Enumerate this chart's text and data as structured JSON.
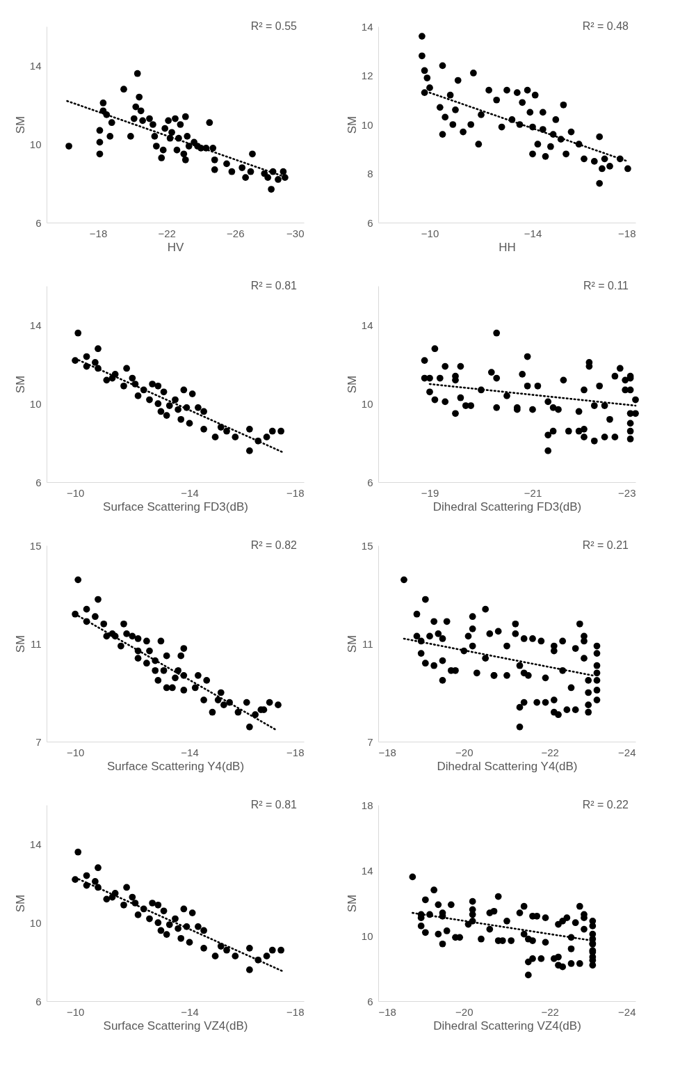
{
  "chart_data": [
    {
      "type": "scatter",
      "xlabel": "HV",
      "ylabel": "SM",
      "xlim": [
        -15,
        -30
      ],
      "xticks": [
        -18,
        -22,
        -26,
        -30
      ],
      "ylim": [
        6,
        16
      ],
      "yticks": [
        6,
        10,
        14
      ],
      "marker": "circle",
      "annotations": [
        "R² = 0.55"
      ],
      "series": [
        {
          "type": "scatter",
          "color": "#000000",
          "x": [
            -16.3,
            -18.1,
            -18.1,
            -18.1,
            -18.3,
            -18.3,
            -18.5,
            -18.7,
            -18.8,
            -19.5,
            -19.9,
            -20.1,
            -20.3,
            -20.4,
            -20.2,
            -20.5,
            -20.6,
            -21.0,
            -21.2,
            -21.3,
            -21.4,
            -21.7,
            -21.8,
            -21.9,
            -22.1,
            -22.2,
            -22.3,
            -22.5,
            -22.6,
            -22.7,
            -22.8,
            -23.0,
            -23.1,
            -23.1,
            -23.2,
            -23.3,
            -23.6,
            -23.8,
            -24.0,
            -24.3,
            -24.5,
            -24.7,
            -24.8,
            -24.8,
            -25.5,
            -25.8,
            -26.4,
            -26.6,
            -27.0,
            -26.9,
            -27.7,
            -27.9,
            -28.1,
            -28.2,
            -28.5,
            -28.8,
            -28.9
          ],
          "values": [
            9.9,
            10.1,
            9.5,
            10.7,
            12.1,
            11.7,
            11.5,
            10.4,
            11.1,
            12.8,
            10.4,
            11.3,
            13.6,
            12.4,
            11.9,
            11.7,
            11.2,
            11.3,
            11.0,
            10.4,
            9.9,
            9.3,
            9.7,
            10.8,
            11.2,
            10.3,
            10.6,
            11.3,
            9.7,
            10.3,
            11.0,
            9.5,
            11.4,
            9.2,
            10.4,
            9.9,
            10.1,
            9.9,
            9.8,
            9.8,
            11.1,
            9.8,
            9.2,
            8.7,
            9.0,
            8.6,
            8.8,
            8.3,
            9.5,
            8.6,
            8.5,
            8.3,
            7.7,
            8.6,
            8.2,
            8.6,
            8.3
          ]
        },
        {
          "type": "line",
          "line_style": "dotted",
          "color": "#000000",
          "marker": "none",
          "x": [
            -16.2,
            -29.0
          ],
          "values": [
            12.2,
            8.3
          ]
        }
      ]
    },
    {
      "type": "scatter",
      "xlabel": "HH",
      "ylabel": "SM",
      "xlim": [
        -8,
        -18
      ],
      "xticks": [
        -10,
        -14,
        -18
      ],
      "ylim": [
        6,
        14
      ],
      "yticks": [
        6,
        8,
        10,
        12,
        14
      ],
      "marker": "circle",
      "annotations": [
        "R² = 0.48"
      ],
      "series": [
        {
          "type": "scatter",
          "color": "#000000",
          "x": [
            -9.7,
            -9.7,
            -9.8,
            -9.8,
            -9.9,
            -10.0,
            -10.4,
            -10.5,
            -10.5,
            -10.6,
            -10.8,
            -10.9,
            -11.0,
            -11.1,
            -11.3,
            -11.6,
            -11.7,
            -11.9,
            -12.0,
            -12.3,
            -12.6,
            -12.8,
            -13.0,
            -13.2,
            -13.4,
            -13.5,
            -13.6,
            -13.8,
            -13.9,
            -14.0,
            -14.0,
            -14.1,
            -14.2,
            -14.4,
            -14.4,
            -14.5,
            -14.7,
            -14.8,
            -14.9,
            -15.1,
            -15.2,
            -15.3,
            -15.5,
            -15.8,
            -16.0,
            -16.4,
            -16.6,
            -16.6,
            -16.7,
            -16.8,
            -17.0,
            -17.4,
            -17.7
          ],
          "values": [
            13.6,
            12.8,
            12.2,
            11.3,
            11.9,
            11.5,
            10.7,
            12.4,
            9.6,
            10.3,
            11.2,
            10.0,
            10.6,
            11.8,
            9.7,
            10.0,
            12.1,
            9.2,
            10.4,
            11.4,
            11.0,
            9.9,
            11.4,
            10.2,
            11.3,
            10.0,
            10.9,
            11.4,
            10.5,
            9.9,
            8.8,
            11.2,
            9.2,
            9.8,
            10.5,
            8.7,
            9.1,
            9.6,
            10.2,
            9.4,
            10.8,
            8.8,
            9.7,
            9.2,
            8.6,
            8.5,
            9.5,
            7.6,
            8.2,
            8.6,
            8.3,
            8.6,
            8.2
          ]
        },
        {
          "type": "line",
          "line_style": "dotted",
          "color": "#000000",
          "marker": "none",
          "x": [
            -10.0,
            -17.7
          ],
          "values": [
            11.3,
            8.5
          ]
        }
      ]
    },
    {
      "type": "scatter",
      "xlabel": "Surface Scattering FD3(dB)",
      "ylabel": "SM",
      "xlim": [
        -9,
        -18
      ],
      "xticks": [
        -10,
        -14,
        -18
      ],
      "ylim": [
        6,
        16
      ],
      "yticks": [
        6,
        10,
        14
      ],
      "marker": "circle",
      "annotations": [
        "R² = 0.81"
      ],
      "series": [
        {
          "type": "scatter",
          "color": "#000000",
          "x": [
            -10.1,
            -10.0,
            -10.4,
            -10.4,
            -10.8,
            -10.7,
            -10.8,
            -11.1,
            -11.3,
            -11.4,
            -11.7,
            -11.8,
            -12.0,
            -12.1,
            -12.2,
            -12.4,
            -12.6,
            -12.7,
            -12.9,
            -12.9,
            -13.0,
            -13.1,
            -13.2,
            -13.3,
            -13.5,
            -13.6,
            -13.7,
            -13.8,
            -13.9,
            -14.0,
            -14.1,
            -14.3,
            -14.5,
            -14.5,
            -14.9,
            -15.1,
            -15.3,
            -15.6,
            -16.1,
            -16.1,
            -16.4,
            -16.7,
            -16.9,
            -17.2
          ],
          "values": [
            13.6,
            12.2,
            12.4,
            11.9,
            12.8,
            12.1,
            11.8,
            11.2,
            11.3,
            11.5,
            10.9,
            11.8,
            11.3,
            11.0,
            10.4,
            10.7,
            10.2,
            11.0,
            10.9,
            10.0,
            9.6,
            10.6,
            9.4,
            9.9,
            10.2,
            9.7,
            9.2,
            10.7,
            9.8,
            9.0,
            10.5,
            9.8,
            9.6,
            8.7,
            8.3,
            8.8,
            8.6,
            8.3,
            8.7,
            7.6,
            8.1,
            8.3,
            8.6,
            8.6
          ]
        },
        {
          "type": "line",
          "line_style": "dotted",
          "color": "#000000",
          "x": [
            -10.0,
            -17.3
          ],
          "values": [
            12.3,
            7.5
          ],
          "marker": "none"
        }
      ]
    },
    {
      "type": "scatter",
      "xlabel": "Dihedral Scattering FD3(dB)",
      "ylabel": "SM",
      "xlim": [
        -18,
        -23
      ],
      "xticks": [
        -19,
        -21,
        -23
      ],
      "ylim": [
        6,
        16
      ],
      "yticks": [
        6,
        10,
        14
      ],
      "marker": "circle",
      "annotations": [
        "R² = 0.11"
      ],
      "series": [
        {
          "type": "scatter",
          "color": "#000000",
          "x": [
            -18.9,
            -18.9,
            -19.0,
            -19.0,
            -19.1,
            -19.1,
            -19.2,
            -19.3,
            -19.3,
            -19.5,
            -19.5,
            -19.5,
            -19.6,
            -19.6,
            -19.7,
            -19.8,
            -20.0,
            -20.2,
            -20.3,
            -20.3,
            -20.3,
            -20.5,
            -20.7,
            -20.7,
            -20.8,
            -20.9,
            -20.9,
            -21.0,
            -21.1,
            -21.3,
            -21.3,
            -21.3,
            -21.4,
            -21.4,
            -21.5,
            -21.6,
            -21.7,
            -21.9,
            -21.9,
            -22.0,
            -22.0,
            -22.0,
            -22.1,
            -22.1,
            -22.2,
            -22.2,
            -22.3,
            -22.4,
            -22.4,
            -22.5,
            -22.6,
            -22.6,
            -22.7,
            -22.8,
            -22.8,
            -22.9,
            -22.9,
            -22.9,
            -22.9,
            -22.9,
            -22.9,
            -22.9,
            -23.0,
            -23.0
          ],
          "values": [
            12.2,
            11.3,
            11.3,
            10.6,
            10.2,
            12.8,
            11.3,
            10.1,
            11.9,
            11.4,
            11.2,
            9.5,
            10.3,
            11.9,
            9.9,
            9.9,
            10.7,
            11.6,
            13.6,
            11.3,
            9.8,
            10.4,
            9.8,
            9.7,
            11.5,
            12.4,
            10.9,
            9.7,
            10.9,
            10.1,
            8.4,
            7.6,
            9.8,
            8.6,
            9.7,
            11.2,
            8.6,
            9.6,
            8.6,
            8.3,
            10.7,
            8.7,
            11.9,
            12.1,
            8.1,
            9.9,
            10.9,
            9.9,
            8.3,
            9.2,
            11.4,
            8.3,
            11.8,
            11.2,
            10.7,
            11.3,
            10.7,
            9.0,
            8.6,
            9.5,
            11.4,
            8.2,
            10.2,
            9.5
          ]
        },
        {
          "type": "line",
          "line_style": "dotted",
          "color": "#000000",
          "marker": "none",
          "x": [
            -19.0,
            -23.0
          ],
          "values": [
            11.0,
            9.9
          ]
        }
      ]
    },
    {
      "type": "scatter",
      "xlabel": "Surface Scattering Y4(dB)",
      "ylabel": "SM",
      "xlim": [
        -9,
        -18
      ],
      "xticks": [
        -10,
        -14,
        -18
      ],
      "ylim": [
        7,
        15
      ],
      "yticks": [
        7,
        11,
        15
      ],
      "marker": "circle",
      "annotations": [
        "R² = 0.82"
      ],
      "series": [
        {
          "type": "scatter",
          "color": "#000000",
          "x": [
            -10.1,
            -10.0,
            -10.4,
            -10.4,
            -10.8,
            -10.7,
            -11.0,
            -11.1,
            -11.3,
            -11.4,
            -11.6,
            -11.7,
            -11.8,
            -12.0,
            -12.2,
            -12.2,
            -12.2,
            -12.5,
            -12.5,
            -12.6,
            -12.8,
            -12.8,
            -12.9,
            -13.0,
            -13.1,
            -13.2,
            -13.2,
            -13.4,
            -13.5,
            -13.6,
            -13.7,
            -13.8,
            -13.8,
            -13.8,
            -14.2,
            -14.3,
            -14.5,
            -14.6,
            -14.8,
            -15.0,
            -15.1,
            -15.2,
            -15.4,
            -15.7,
            -16.0,
            -16.1,
            -16.3,
            -16.5,
            -16.6,
            -16.8,
            -17.1
          ],
          "values": [
            13.6,
            12.2,
            12.4,
            11.9,
            12.8,
            12.1,
            11.8,
            11.3,
            11.4,
            11.3,
            10.9,
            11.8,
            11.4,
            11.3,
            11.2,
            10.7,
            10.4,
            10.2,
            11.1,
            10.7,
            9.9,
            10.3,
            9.5,
            11.1,
            9.9,
            10.5,
            9.2,
            9.2,
            9.6,
            9.9,
            10.5,
            10.8,
            9.7,
            9.1,
            9.2,
            9.7,
            8.7,
            9.5,
            8.2,
            8.7,
            9.0,
            8.5,
            8.6,
            8.2,
            8.6,
            7.6,
            8.1,
            8.3,
            8.3,
            8.6,
            8.5
          ]
        },
        {
          "type": "line",
          "line_style": "dotted",
          "color": "#000000",
          "marker": "none",
          "x": [
            -10.0,
            -17.0
          ],
          "values": [
            12.2,
            7.5
          ]
        }
      ]
    },
    {
      "type": "scatter",
      "xlabel": "Dihedral Scattering Y4(dB)",
      "ylabel": "SM",
      "xlim": [
        -18,
        -24
      ],
      "xticks": [
        -18,
        -20,
        -22,
        -24
      ],
      "ylim": [
        7,
        15
      ],
      "yticks": [
        7,
        11,
        15
      ],
      "marker": "circle",
      "annotations": [
        "R² = 0.21"
      ],
      "series": [
        {
          "type": "scatter",
          "color": "#000000",
          "x": [
            -18.6,
            -18.9,
            -19.1,
            -18.9,
            -19.0,
            -19.2,
            -19.0,
            -19.1,
            -19.3,
            -19.3,
            -19.4,
            -19.5,
            -19.5,
            -19.5,
            -19.6,
            -19.7,
            -19.8,
            -20.0,
            -20.1,
            -20.2,
            -20.2,
            -20.2,
            -20.3,
            -20.5,
            -20.5,
            -20.6,
            -20.7,
            -20.7,
            -20.8,
            -21.0,
            -21.0,
            -21.2,
            -21.2,
            -21.3,
            -21.3,
            -21.3,
            -21.4,
            -21.4,
            -21.5,
            -21.4,
            -21.6,
            -21.7,
            -21.8,
            -21.9,
            -21.9,
            -22.1,
            -22.1,
            -22.1,
            -22.1,
            -22.3,
            -22.2,
            -22.3,
            -22.4,
            -22.5,
            -22.6,
            -22.6,
            -22.7,
            -22.8,
            -22.8,
            -22.8,
            -22.9,
            -22.9,
            -22.9,
            -22.9,
            -23.1,
            -23.1,
            -23.1,
            -23.1,
            -23.1,
            -23.1,
            -23.1
          ],
          "values": [
            13.6,
            12.2,
            12.8,
            11.3,
            11.1,
            11.3,
            10.6,
            10.2,
            11.9,
            10.1,
            11.4,
            11.2,
            9.5,
            10.3,
            11.9,
            9.9,
            9.9,
            10.7,
            11.3,
            11.6,
            10.9,
            12.1,
            9.8,
            10.4,
            12.4,
            11.4,
            9.7,
            9.7,
            11.5,
            9.7,
            10.9,
            11.8,
            11.4,
            10.1,
            8.4,
            7.6,
            9.8,
            8.6,
            9.7,
            11.2,
            11.2,
            8.6,
            11.1,
            9.6,
            8.6,
            8.7,
            8.2,
            10.7,
            10.9,
            11.1,
            8.1,
            9.9,
            8.3,
            9.2,
            8.3,
            10.8,
            11.8,
            11.3,
            11.1,
            10.4,
            9.5,
            9.0,
            8.5,
            8.2,
            10.9,
            10.6,
            10.1,
            9.8,
            9.5,
            9.1,
            8.7
          ]
        },
        {
          "type": "line",
          "line_style": "dotted",
          "color": "#000000",
          "marker": "none",
          "x": [
            -18.6,
            -23.0
          ],
          "values": [
            11.2,
            9.7
          ]
        }
      ]
    },
    {
      "type": "scatter",
      "xlabel": "Surface Scattering VZ4(dB)",
      "ylabel": "SM",
      "xlim": [
        -9,
        -18
      ],
      "xticks": [
        -10,
        -14,
        -18
      ],
      "ylim": [
        6,
        16
      ],
      "yticks": [
        6,
        10,
        14
      ],
      "marker": "circle",
      "annotations": [
        "R² = 0.81"
      ],
      "series": [
        {
          "type": "scatter",
          "color": "#000000",
          "x": [
            -10.1,
            -10.0,
            -10.4,
            -10.4,
            -10.8,
            -10.7,
            -10.8,
            -11.1,
            -11.3,
            -11.4,
            -11.7,
            -11.8,
            -12.0,
            -12.1,
            -12.2,
            -12.4,
            -12.6,
            -12.7,
            -12.9,
            -12.9,
            -13.0,
            -13.1,
            -13.2,
            -13.3,
            -13.5,
            -13.6,
            -13.7,
            -13.8,
            -13.9,
            -14.0,
            -14.1,
            -14.3,
            -14.5,
            -14.5,
            -14.9,
            -15.1,
            -15.3,
            -15.6,
            -16.1,
            -16.1,
            -16.4,
            -16.7,
            -16.9,
            -17.2
          ],
          "values": [
            13.6,
            12.2,
            12.4,
            11.9,
            12.8,
            12.1,
            11.8,
            11.2,
            11.3,
            11.5,
            10.9,
            11.8,
            11.3,
            11.0,
            10.4,
            10.7,
            10.2,
            11.0,
            10.9,
            10.0,
            9.6,
            10.6,
            9.4,
            9.9,
            10.2,
            9.7,
            9.2,
            10.7,
            9.8,
            9.0,
            10.5,
            9.8,
            9.6,
            8.7,
            8.3,
            8.8,
            8.6,
            8.3,
            8.7,
            7.6,
            8.1,
            8.3,
            8.6,
            8.6
          ]
        },
        {
          "type": "line",
          "line_style": "dotted",
          "color": "#000000",
          "x": [
            -10.0,
            -17.3
          ],
          "values": [
            12.3,
            7.5
          ],
          "marker": "none"
        }
      ]
    },
    {
      "type": "scatter",
      "xlabel": "Dihedral Scattering VZ4(dB)",
      "ylabel": "SM",
      "xlim": [
        -18,
        -24
      ],
      "xticks": [
        -18,
        -20,
        -22,
        -24
      ],
      "ylim": [
        6,
        18
      ],
      "yticks": [
        6,
        10,
        14,
        18
      ],
      "marker": "circle",
      "annotations": [
        "R² = 0.22"
      ],
      "series": [
        {
          "type": "scatter",
          "color": "#000000",
          "x": [
            -18.8,
            -19.1,
            -19.3,
            -19.0,
            -19.0,
            -19.2,
            -19.0,
            -19.1,
            -19.4,
            -19.4,
            -19.5,
            -19.5,
            -19.5,
            -19.6,
            -19.7,
            -19.8,
            -19.9,
            -20.1,
            -20.2,
            -20.2,
            -20.2,
            -20.2,
            -20.4,
            -20.6,
            -20.8,
            -20.6,
            -20.8,
            -20.9,
            -20.7,
            -21.1,
            -21.0,
            -21.4,
            -21.3,
            -21.4,
            -21.5,
            -21.5,
            -21.5,
            -21.6,
            -21.6,
            -21.6,
            -21.7,
            -21.8,
            -21.9,
            -21.9,
            -22.1,
            -22.2,
            -22.2,
            -22.2,
            -22.3,
            -22.4,
            -22.3,
            -22.5,
            -22.5,
            -22.5,
            -22.7,
            -22.6,
            -22.7,
            -22.8,
            -22.8,
            -22.8,
            -23.0,
            -23.0,
            -23.0,
            -23.0,
            -23.0,
            -23.0,
            -23.0,
            -23.0,
            -23.0,
            -23.0,
            -23.0
          ],
          "values": [
            13.6,
            12.2,
            12.8,
            11.3,
            11.1,
            11.3,
            10.6,
            10.2,
            11.9,
            10.1,
            11.4,
            11.2,
            9.5,
            10.3,
            11.9,
            9.9,
            9.9,
            10.7,
            11.3,
            11.6,
            10.9,
            12.1,
            9.8,
            10.4,
            12.4,
            11.4,
            9.7,
            9.7,
            11.5,
            9.7,
            10.9,
            11.8,
            11.4,
            10.1,
            8.4,
            7.6,
            9.8,
            8.6,
            9.7,
            11.2,
            11.2,
            8.6,
            11.1,
            9.6,
            8.6,
            8.7,
            8.2,
            10.7,
            10.9,
            11.1,
            8.1,
            9.9,
            8.3,
            9.2,
            8.3,
            10.8,
            11.8,
            11.3,
            11.1,
            10.4,
            9.5,
            9.0,
            8.5,
            8.2,
            10.9,
            10.6,
            10.1,
            9.8,
            9.5,
            9.1,
            8.7
          ]
        },
        {
          "type": "line",
          "line_style": "dotted",
          "color": "#000000",
          "marker": "none",
          "x": [
            -18.8,
            -23.0
          ],
          "values": [
            11.4,
            9.7
          ]
        }
      ]
    }
  ]
}
